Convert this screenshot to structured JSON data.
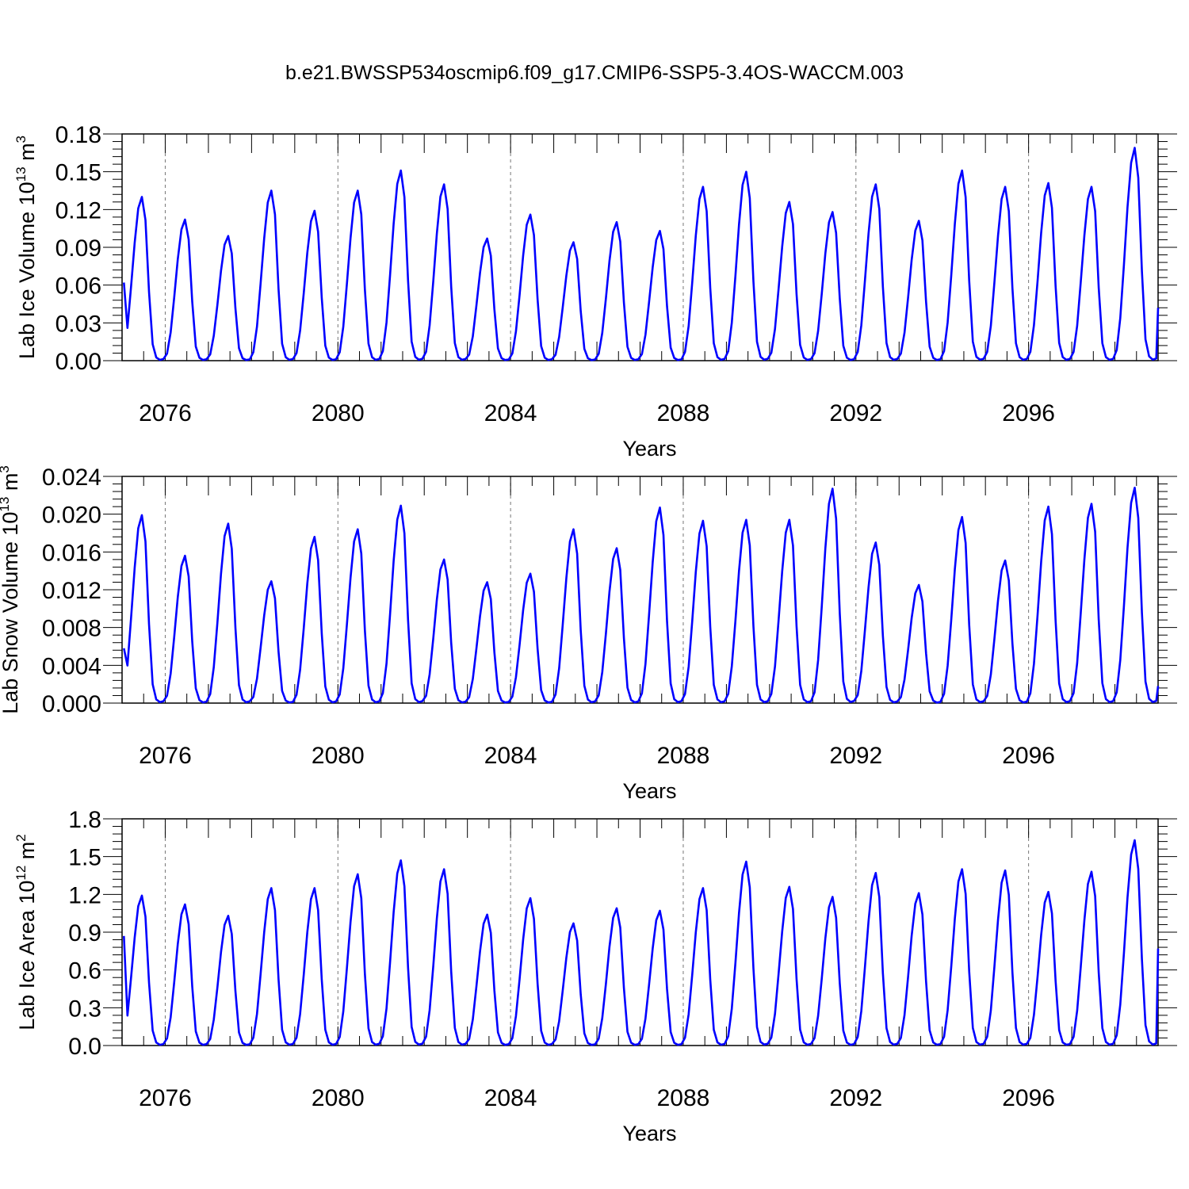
{
  "figure": {
    "title": "b.e21.BWSSP534oscmip6.f09_g17.CMIP6-SSP5-3.4OS-WACCM.003"
  },
  "chart_data": [
    {
      "type": "line",
      "ylabel": "Lab Ice Volume 10",
      "ylabel_exp": "13",
      "ylabel_unit": " m",
      "ylabel_unit_exp": "3",
      "xlabel": "Years",
      "xlim": [
        2075.0,
        2099.0
      ],
      "ylim": [
        0,
        0.18
      ],
      "yticks": [
        "0.00",
        "0.03",
        "0.06",
        "0.09",
        "0.12",
        "0.15",
        "0.18"
      ],
      "xticks": [
        "2076",
        "2080",
        "2084",
        "2088",
        "2092",
        "2096"
      ],
      "grid_vertical_dashed": [
        2076,
        2080,
        2084,
        2088,
        2092,
        2096
      ],
      "color": "#0000ff",
      "peaks": [
        0.13,
        0.112,
        0.099,
        0.135,
        0.119,
        0.135,
        0.151,
        0.14,
        0.097,
        0.116,
        0.094,
        0.11,
        0.103,
        0.138,
        0.15,
        0.126,
        0.118,
        0.14,
        0.111,
        0.151,
        0.138,
        0.141,
        0.138,
        0.169
      ],
      "start_value": 0.062,
      "end_value": 0.042
    },
    {
      "type": "line",
      "ylabel": "Lab Snow Volume 10",
      "ylabel_exp": "13",
      "ylabel_unit": " m",
      "ylabel_unit_exp": "3",
      "xlabel": "Years",
      "xlim": [
        2075.0,
        2099.0
      ],
      "ylim": [
        0,
        0.024
      ],
      "yticks": [
        "0.000",
        "0.004",
        "0.008",
        "0.012",
        "0.016",
        "0.020",
        "0.024"
      ],
      "xticks": [
        "2076",
        "2080",
        "2084",
        "2088",
        "2092",
        "2096"
      ],
      "grid_vertical_dashed": [
        2076,
        2080,
        2084,
        2088,
        2092,
        2096
      ],
      "color": "#0000ff",
      "peaks": [
        0.0199,
        0.0156,
        0.019,
        0.0129,
        0.0176,
        0.0184,
        0.0209,
        0.0152,
        0.0128,
        0.0137,
        0.0184,
        0.0164,
        0.0207,
        0.0193,
        0.0194,
        0.0194,
        0.0227,
        0.017,
        0.0125,
        0.0197,
        0.0151,
        0.0208,
        0.0211,
        0.0228
      ],
      "start_value": 0.0058,
      "end_value": 0.0018
    },
    {
      "type": "line",
      "ylabel": "Lab Ice Area 10",
      "ylabel_exp": "12",
      "ylabel_unit": " m",
      "ylabel_unit_exp": "2",
      "xlabel": "Years",
      "xlim": [
        2075.0,
        2099.0
      ],
      "ylim": [
        0,
        1.8
      ],
      "yticks": [
        "0.0",
        "0.3",
        "0.6",
        "0.9",
        "1.2",
        "1.5",
        "1.8"
      ],
      "xticks": [
        "2076",
        "2080",
        "2084",
        "2088",
        "2092",
        "2096"
      ],
      "grid_vertical_dashed": [
        2076,
        2080,
        2084,
        2088,
        2092,
        2096
      ],
      "color": "#0000ff",
      "peaks": [
        1.19,
        1.12,
        1.03,
        1.25,
        1.25,
        1.36,
        1.47,
        1.4,
        1.04,
        1.17,
        0.97,
        1.09,
        1.07,
        1.25,
        1.46,
        1.26,
        1.18,
        1.37,
        1.21,
        1.4,
        1.39,
        1.22,
        1.38,
        1.63
      ],
      "start_value": 0.87,
      "end_value": 0.77
    }
  ]
}
